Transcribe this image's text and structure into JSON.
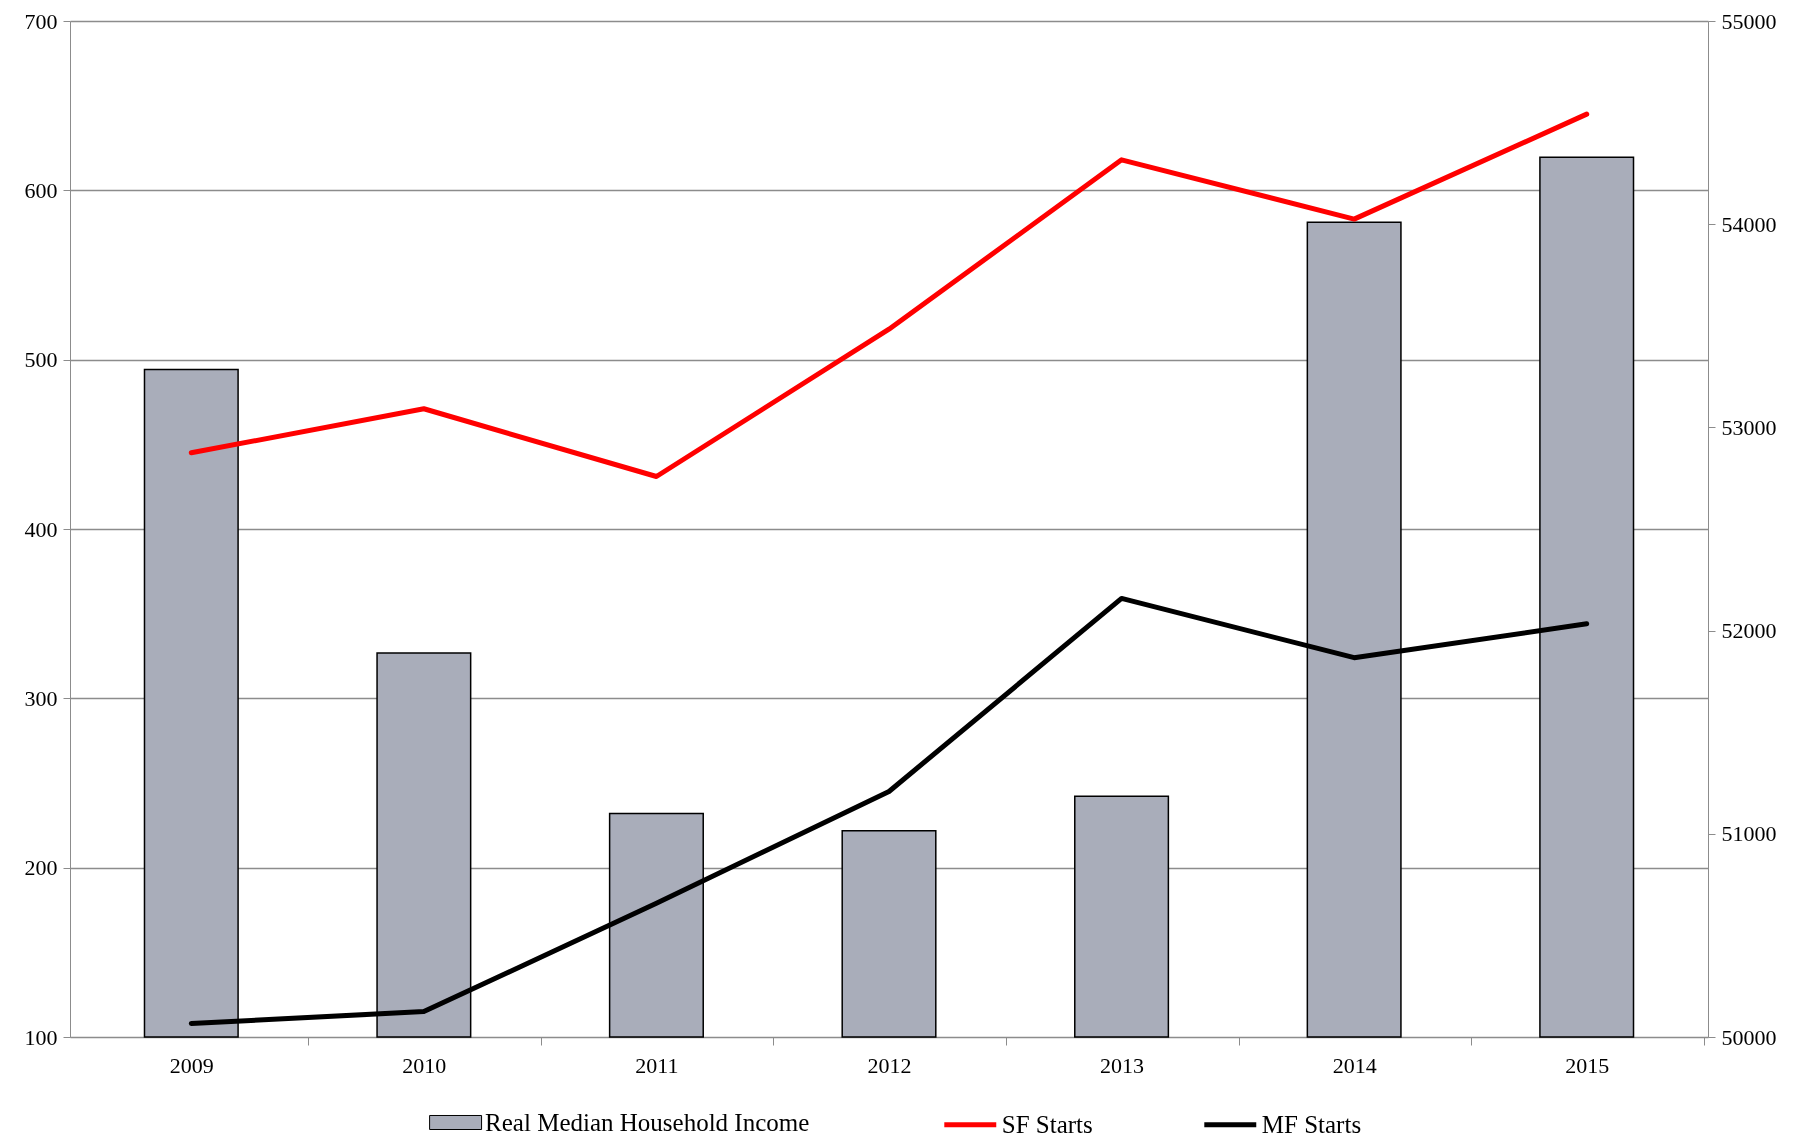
{
  "chart_data": {
    "type": "bar",
    "categories": [
      "2009",
      "2010",
      "2011",
      "2012",
      "2013",
      "2014",
      "2015"
    ],
    "series": [
      {
        "name": "Real Median Household Income",
        "axis": "y2",
        "color": "#a9adba",
        "values": [
          53285,
          51890,
          51100,
          51015,
          51185,
          54010,
          54330
        ]
      },
      {
        "name": "SF Starts",
        "type": "line",
        "color": "#ff0000",
        "values": [
          445,
          471,
          431,
          518,
          618,
          583,
          645
        ]
      },
      {
        "name": "MF Starts",
        "type": "line",
        "color": "#000000",
        "values": [
          108,
          115,
          179,
          245,
          359,
          324,
          344
        ]
      }
    ],
    "ylim": [
      100,
      700
    ],
    "yticks": [
      100,
      200,
      300,
      400,
      500,
      600,
      700
    ],
    "y2lim": [
      50000,
      55000
    ],
    "y2ticks": [
      50000,
      51000,
      52000,
      53000,
      54000,
      55000
    ],
    "grid": "y",
    "legend": "bottom"
  }
}
